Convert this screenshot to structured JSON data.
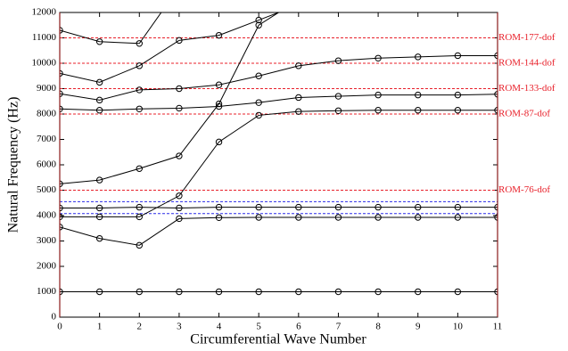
{
  "chart_data": {
    "type": "line",
    "xlabel": "Circumferential Wave Number",
    "ylabel": "Natural Frequency (Hz)",
    "x": [
      0,
      1,
      2,
      3,
      4,
      5,
      6,
      7,
      8,
      9,
      10,
      11
    ],
    "xlim": [
      0,
      11
    ],
    "xticks": [
      0,
      1,
      2,
      3,
      4,
      5,
      6,
      7,
      8,
      9,
      10,
      11
    ],
    "ylim": [
      0,
      12000
    ],
    "yticks": [
      0,
      1000,
      2000,
      3000,
      4000,
      5000,
      6000,
      7000,
      8000,
      9000,
      10000,
      11000,
      12000
    ],
    "series": [
      {
        "color": "#000000",
        "values": [
          1000,
          1000,
          1000,
          1000,
          1000,
          1000,
          1000,
          1000,
          1000,
          1000,
          1000,
          1000
        ]
      },
      {
        "color": "#000000",
        "values": [
          3550,
          3100,
          2830,
          3880,
          3920,
          3930,
          3930,
          3930,
          3930,
          3930,
          3930,
          3930
        ]
      },
      {
        "color": "#000000",
        "values": [
          3950,
          3950,
          3950,
          4780,
          6900,
          7950,
          8100,
          8130,
          8150,
          8150,
          8150,
          8150
        ]
      },
      {
        "color": "#000000",
        "values": [
          4300,
          4300,
          4330,
          4300,
          4330,
          4330,
          4330,
          4330,
          4330,
          4330,
          4330,
          4330
        ]
      },
      {
        "color": "#000000",
        "values": [
          5250,
          5400,
          5850,
          6350,
          8400,
          11500,
          12500,
          null,
          null,
          null,
          null,
          null
        ]
      },
      {
        "color": "#000000",
        "values": [
          8200,
          8150,
          8200,
          8230,
          8300,
          8450,
          8650,
          8700,
          8750,
          8750,
          8750,
          8780
        ]
      },
      {
        "color": "#000000",
        "values": [
          8800,
          8550,
          8950,
          9000,
          9150,
          9500,
          9900,
          10100,
          10200,
          10250,
          10300,
          10300
        ]
      },
      {
        "color": "#000000",
        "values": [
          9600,
          9250,
          9900,
          10900,
          11100,
          11700,
          12300,
          null,
          null,
          null,
          null,
          null
        ]
      },
      {
        "color": "#000000",
        "values": [
          11300,
          10850,
          10780,
          13000,
          null,
          null,
          null,
          null,
          null,
          null,
          null,
          null
        ]
      }
    ],
    "hlines": [
      {
        "value": 11000,
        "label": "ROM-177-dof",
        "color": "#e8202a"
      },
      {
        "value": 10000,
        "label": "ROM-144-dof",
        "color": "#e8202a"
      },
      {
        "value": 9000,
        "label": "ROM-133-dof",
        "color": "#e8202a"
      },
      {
        "value": 8000,
        "label": "ROM-87-dof",
        "color": "#e8202a"
      },
      {
        "value": 5000,
        "label": "ROM-76-dof",
        "color": "#e8202a"
      },
      {
        "value": 4550,
        "color": "#2a2ae8"
      },
      {
        "value": 4080,
        "color": "#2a2ae8"
      }
    ]
  }
}
